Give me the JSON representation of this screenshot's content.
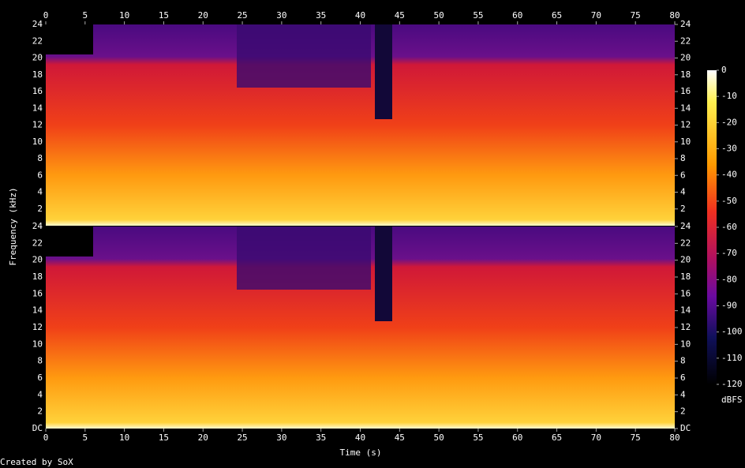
{
  "chart_data": {
    "type": "spectrogram",
    "xlabel": "Time (s)",
    "ylabel": "Frequency (kHz)",
    "xlim": [
      0,
      80
    ],
    "xticks": [
      0,
      5,
      10,
      15,
      20,
      25,
      30,
      35,
      40,
      45,
      50,
      55,
      60,
      65,
      70,
      75,
      80
    ],
    "panels": [
      {
        "ylim": [
          0,
          24
        ],
        "yticks": [
          2,
          4,
          6,
          8,
          10,
          12,
          14,
          16,
          18,
          20,
          22,
          24
        ]
      },
      {
        "ylim": [
          0,
          24
        ],
        "yticks": [
          {
            "value": 0,
            "label": "DC"
          },
          2,
          4,
          6,
          8,
          10,
          12,
          14,
          16,
          18,
          20,
          22,
          24
        ]
      }
    ],
    "colorbar": {
      "label": "dBFS",
      "lim": [
        -120,
        0
      ],
      "ticks": [
        0,
        -10,
        -20,
        -30,
        -40,
        -50,
        -60,
        -70,
        -80,
        -90,
        -100,
        -110,
        -120
      ]
    },
    "credit": "Created by SoX"
  }
}
